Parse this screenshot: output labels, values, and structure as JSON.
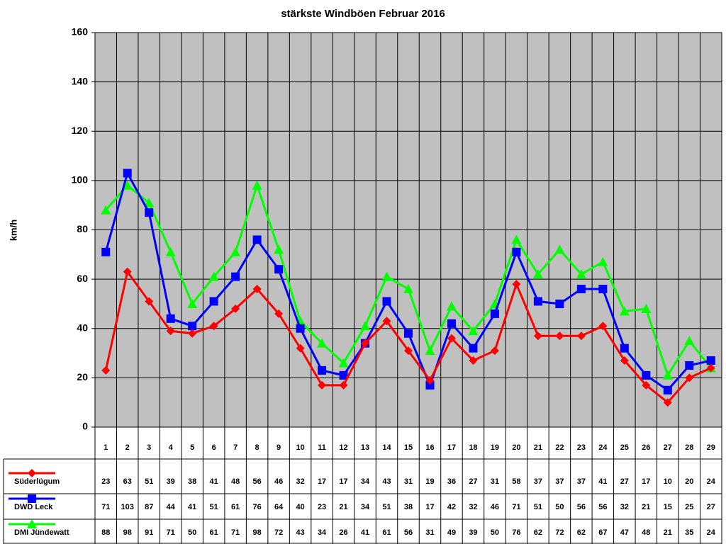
{
  "chart_data": {
    "type": "line",
    "title": "stärkste Windböen Februar 2016",
    "y_label": "km/h",
    "categories": [
      "1",
      "2",
      "3",
      "4",
      "5",
      "6",
      "7",
      "8",
      "9",
      "10",
      "11",
      "12",
      "13",
      "14",
      "15",
      "16",
      "17",
      "18",
      "19",
      "20",
      "21",
      "22",
      "23",
      "24",
      "25",
      "26",
      "27",
      "28",
      "29"
    ],
    "ylim": [
      0,
      160
    ],
    "yticks": [
      0,
      20,
      40,
      60,
      80,
      100,
      120,
      140,
      160
    ],
    "grid": true,
    "plot_background": "#c0c0c0",
    "series": [
      {
        "name": "Süderlügum",
        "color": "#ff0000",
        "marker": "diamond",
        "values": [
          23,
          63,
          51,
          39,
          38,
          41,
          48,
          56,
          46,
          32,
          17,
          17,
          34,
          43,
          31,
          19,
          36,
          27,
          31,
          58,
          37,
          37,
          37,
          41,
          27,
          17,
          10,
          20,
          24
        ]
      },
      {
        "name": "DWD Leck",
        "color": "#0000ff",
        "marker": "square",
        "values": [
          71,
          103,
          87,
          44,
          41,
          51,
          61,
          76,
          64,
          40,
          23,
          21,
          34,
          51,
          38,
          17,
          42,
          32,
          46,
          71,
          51,
          50,
          56,
          56,
          32,
          21,
          15,
          25,
          27
        ]
      },
      {
        "name": "DMI Jündewatt",
        "color": "#00ff00",
        "marker": "triangle",
        "values": [
          88,
          98,
          91,
          71,
          50,
          61,
          71,
          98,
          72,
          43,
          34,
          26,
          41,
          61,
          56,
          31,
          49,
          39,
          50,
          76,
          62,
          72,
          62,
          67,
          47,
          48,
          21,
          35,
          24
        ]
      }
    ]
  }
}
